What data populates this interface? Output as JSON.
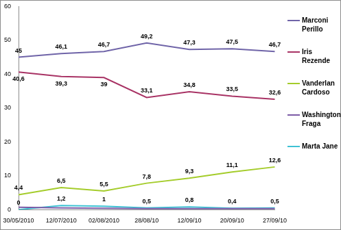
{
  "chart_data": {
    "type": "line",
    "categories": [
      "30/05/2010",
      "12/07/2010",
      "02/08/2010",
      "28/08/10",
      "12/09/10",
      "20/09/10",
      "27/09/10"
    ],
    "ylim": [
      0,
      60
    ],
    "yticks": [
      0,
      10,
      20,
      30,
      40,
      50,
      60
    ],
    "grid": false,
    "legend": "right",
    "marker": "none",
    "series": [
      {
        "name": "Marconi Perillo",
        "color": "#6f64a8",
        "values": [
          45,
          46.1,
          46.7,
          49.2,
          47.3,
          47.5,
          46.7
        ],
        "value_labels": [
          "45",
          "46,1",
          "46,7",
          "49,2",
          "47,3",
          "47,5",
          "46,7"
        ],
        "data_labels": true
      },
      {
        "name": "Iris Rezende",
        "color": "#a83264",
        "values": [
          40.6,
          39.3,
          39,
          33.1,
          34.8,
          33.5,
          32.6
        ],
        "value_labels": [
          "40,6",
          "39,3",
          "39",
          "33,1",
          "34,8",
          "33,5",
          "32,6"
        ],
        "data_labels": true
      },
      {
        "name": "Vanderlan Cardoso",
        "color": "#a4cc2a",
        "values": [
          4.4,
          6.5,
          5.5,
          7.8,
          9.3,
          11.1,
          12.6
        ],
        "value_labels": [
          "4,4",
          "6,5",
          "5,5",
          "7,8",
          "9,3",
          "11,1",
          "12,6"
        ],
        "data_labels": true
      },
      {
        "name": "Washington Fraga",
        "color": "#7b5aa6",
        "values": [
          0.7,
          0.5,
          0.4,
          0.3,
          0.3,
          0.3,
          0.3
        ],
        "data_labels": false
      },
      {
        "name": "Marta Jane",
        "color": "#3ec2d4",
        "values": [
          0,
          1.2,
          1,
          0.5,
          0.8,
          0.4,
          0.5
        ],
        "value_labels": [
          "0",
          "1,2",
          "1",
          "0,5",
          "0,8",
          "0,4",
          "0,5"
        ],
        "data_labels": true
      }
    ]
  }
}
